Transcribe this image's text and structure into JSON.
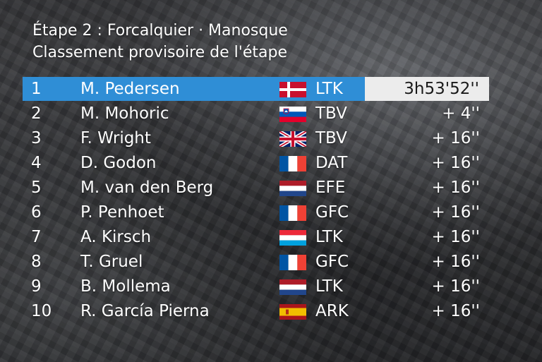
{
  "header": {
    "title": "Étape 2 : Forcalquier · Manosque",
    "subtitle": "Classement provisoire de l'étape"
  },
  "colors": {
    "leader_bar": "#2f8ed6",
    "time_box": "#ececec",
    "text": "#ffffff"
  },
  "standings": [
    {
      "rank": "1",
      "rider": "M. Pedersen",
      "flag": "denmark-flag",
      "team": "LTK",
      "time": "3h53'52''"
    },
    {
      "rank": "2",
      "rider": "M. Mohoric",
      "flag": "slovenia-flag",
      "team": "TBV",
      "time": "+ 4''"
    },
    {
      "rank": "3",
      "rider": "F. Wright",
      "flag": "uk-flag",
      "team": "TBV",
      "time": "+ 16''"
    },
    {
      "rank": "4",
      "rider": "D. Godon",
      "flag": "france-flag",
      "team": "DAT",
      "time": "+ 16''"
    },
    {
      "rank": "5",
      "rider": "M. van den Berg",
      "flag": "netherlands-flag",
      "team": "EFE",
      "time": "+ 16''"
    },
    {
      "rank": "6",
      "rider": "P. Penhoet",
      "flag": "france-flag",
      "team": "GFC",
      "time": "+ 16''"
    },
    {
      "rank": "7",
      "rider": "A. Kirsch",
      "flag": "luxembourg-flag",
      "team": "LTK",
      "time": "+ 16''"
    },
    {
      "rank": "8",
      "rider": "T. Gruel",
      "flag": "france-flag",
      "team": "GFC",
      "time": "+ 16''"
    },
    {
      "rank": "9",
      "rider": "B. Mollema",
      "flag": "netherlands-flag",
      "team": "LTK",
      "time": "+ 16''"
    },
    {
      "rank": "10",
      "rider": "R. García Pierna",
      "flag": "spain-flag",
      "team": "ARK",
      "time": "+ 16''"
    }
  ]
}
